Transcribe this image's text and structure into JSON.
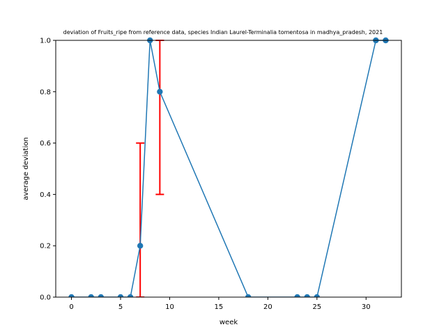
{
  "chart_data": {
    "type": "line",
    "title": "deviation of Fruits_ripe from reference data, species Indian Laurel-Terminalia tomentosa in madhya_pradesh, 2021",
    "xlabel": "week",
    "ylabel": "average deviation",
    "xlim": [
      -1.6,
      33.6
    ],
    "ylim": [
      0,
      1
    ],
    "xticks": [
      0,
      5,
      10,
      15,
      20,
      25,
      30
    ],
    "yticks": [
      0.0,
      0.2,
      0.4,
      0.6,
      0.8,
      1.0
    ],
    "ytick_labels": [
      "0.0",
      "0.2",
      "0.4",
      "0.6",
      "0.8",
      "1.0"
    ],
    "grid": false,
    "series": [
      {
        "x": [
          0,
          2,
          3,
          5,
          6,
          7,
          8,
          9,
          18,
          23,
          24,
          25,
          31,
          32
        ],
        "y": [
          0,
          0,
          0,
          0,
          0,
          0.2,
          1.0,
          0.8,
          0,
          0,
          0,
          0,
          1.0,
          1.0
        ],
        "color": "#1f77b4",
        "marker": "circle"
      }
    ],
    "error_bars": [
      {
        "x": 7,
        "low": 0.0,
        "high": 0.6
      },
      {
        "x": 9,
        "low": 0.4,
        "high": 1.0
      }
    ],
    "error_color": "#ff0000"
  }
}
